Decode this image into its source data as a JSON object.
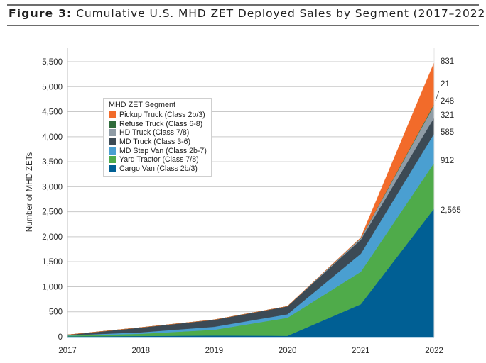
{
  "figure": {
    "label": "Figure 3:",
    "title": "Cumulative U.S. MHD ZET Deployed Sales by Segment (2017–2022)"
  },
  "chart_data": {
    "type": "area",
    "stacked": true,
    "title": "Cumulative U.S. MHD ZET Deployed Sales by Segment (2017–2022)",
    "xlabel": "",
    "ylabel": "Number of MHD ZETs",
    "x": [
      "2017",
      "2018",
      "2019",
      "2020",
      "2021",
      "2022"
    ],
    "ylim": [
      0,
      5500
    ],
    "yticks": [
      0,
      500,
      1000,
      1500,
      2000,
      2500,
      3000,
      3500,
      4000,
      4500,
      5000,
      5500
    ],
    "ytick_labels": [
      "0",
      "500",
      "1,000",
      "1,500",
      "2,000",
      "2,500",
      "3,000",
      "3,500",
      "4,000",
      "4,500",
      "5,000",
      "5,500"
    ],
    "grid": "horizontal",
    "legend": {
      "title": "MHD ZET Segment",
      "placement": "upper-left inside plot"
    },
    "series": [
      {
        "name": "Cargo Van (Class 2b/3)",
        "color": "#005f94",
        "values": [
          8,
          15,
          25,
          20,
          650,
          2565
        ]
      },
      {
        "name": "Yard Tractor (Class 7/8)",
        "color": "#4fab4a",
        "values": [
          15,
          45,
          115,
          360,
          650,
          912
        ]
      },
      {
        "name": "MD Step Van (Class 2b-7)",
        "color": "#4a9fd1",
        "values": [
          7,
          30,
          60,
          70,
          360,
          585
        ]
      },
      {
        "name": "MD Truck (Class 3-6)",
        "color": "#3c4a55",
        "values": [
          10,
          95,
          140,
          160,
          280,
          321
        ]
      },
      {
        "name": "HD Truck (Class 7/8)",
        "color": "#8f9ca6",
        "values": [
          0,
          0,
          0,
          0,
          30,
          248
        ]
      },
      {
        "name": "Refuse Truck (Class 6-8)",
        "color": "#2f6b3a",
        "values": [
          0,
          0,
          0,
          0,
          5,
          21
        ]
      },
      {
        "name": "Pickup Truck (Class 2b/3)",
        "color": "#f26b2a",
        "values": [
          0,
          0,
          0,
          0,
          10,
          831
        ]
      }
    ],
    "legend_order": [
      "Pickup Truck (Class 2b/3)",
      "Refuse Truck (Class 6-8)",
      "HD Truck (Class 7/8)",
      "MD Truck (Class 3-6)",
      "MD Step Van (Class 2b-7)",
      "Yard Tractor (Class 7/8)",
      "Cargo Van (Class 2b/3)"
    ],
    "end_labels": [
      {
        "series": "Pickup Truck (Class 2b/3)",
        "text": "831"
      },
      {
        "series": "Refuse Truck (Class 6-8)",
        "text": "21"
      },
      {
        "series": "HD Truck (Class 7/8)",
        "text": "248"
      },
      {
        "series": "MD Truck (Class 3-6)",
        "text": "321"
      },
      {
        "series": "MD Step Van (Class 2b-7)",
        "text": "585"
      },
      {
        "series": "Yard Tractor (Class 7/8)",
        "text": "912"
      },
      {
        "series": "Cargo Van (Class 2b/3)",
        "text": "2,565"
      }
    ]
  }
}
